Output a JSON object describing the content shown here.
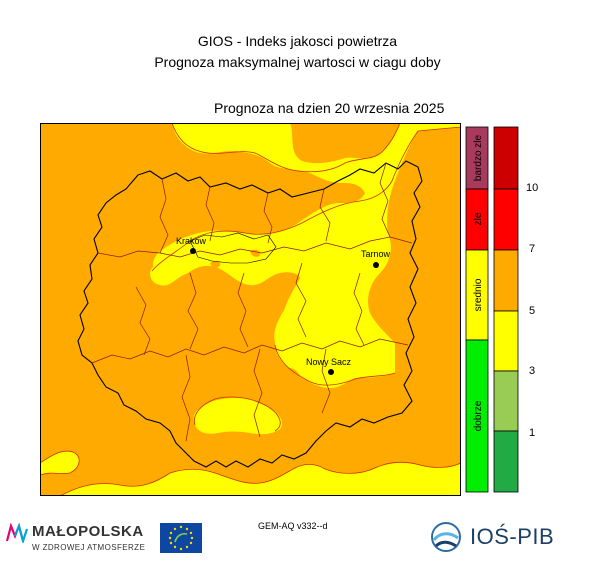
{
  "title_line1": "GIOS - Indeks jakosci powietrza",
  "title_line2": "Prognoza maksymalnej wartosci w ciagu doby",
  "forecast_label": "Prognoza na dzien  20 wrzesnia 2025",
  "cities": [
    {
      "name": "Krakow"
    },
    {
      "name": "Tarnow"
    },
    {
      "name": "Nowy Sacz"
    }
  ],
  "legend": {
    "categories": [
      {
        "label": "bardzo zle",
        "color": "#a83a5e"
      },
      {
        "label": "zle",
        "color": "#ff0000"
      },
      {
        "label": "srednio",
        "color": "#ffff00"
      },
      {
        "label": "dobrze",
        "color": "#00ee00"
      }
    ],
    "scale_colors": [
      "#cc0000",
      "#ff0000",
      "#ffaa00",
      "#ffff00",
      "#99cc55",
      "#22aa44"
    ],
    "scale_ticks": [
      "10",
      "7",
      "5",
      "3",
      "1"
    ]
  },
  "colors": {
    "orange": "#ffaa00",
    "yellow": "#ffff00",
    "border_dark": "#000000",
    "border_red": "#cc2200"
  },
  "footer": {
    "model": "GEM-AQ v332--d",
    "logo_malopolska": "MAŁOPOLSKA",
    "logo_malopolska_sub": "W ZDROWEJ ATMOSFERZE",
    "logo_ios": "IOŚ-PIB"
  }
}
